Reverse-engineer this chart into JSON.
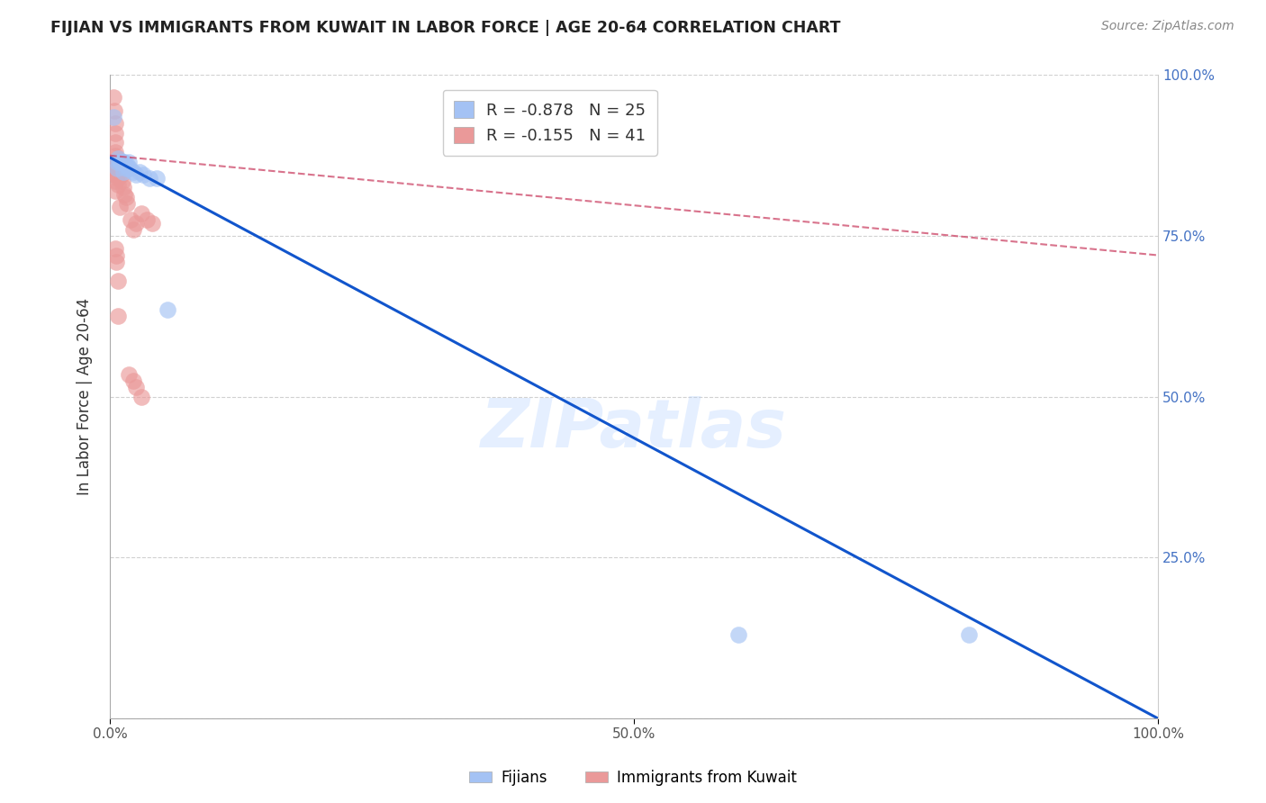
{
  "title": "FIJIAN VS IMMIGRANTS FROM KUWAIT IN LABOR FORCE | AGE 20-64 CORRELATION CHART",
  "source": "Source: ZipAtlas.com",
  "ylabel": "In Labor Force | Age 20-64",
  "xlim": [
    0.0,
    1.0
  ],
  "ylim": [
    0.0,
    1.0
  ],
  "legend_r_blue": "-0.878",
  "legend_n_blue": "25",
  "legend_r_pink": "-0.155",
  "legend_n_pink": "41",
  "blue_color": "#a4c2f4",
  "pink_color": "#ea9999",
  "blue_line_color": "#1155cc",
  "pink_line_color": "#cc4466",
  "watermark": "ZIPatlas",
  "fijian_points": [
    [
      0.003,
      0.935
    ],
    [
      0.007,
      0.865
    ],
    [
      0.007,
      0.855
    ],
    [
      0.008,
      0.87
    ],
    [
      0.009,
      0.865
    ],
    [
      0.01,
      0.865
    ],
    [
      0.011,
      0.865
    ],
    [
      0.012,
      0.865
    ],
    [
      0.013,
      0.865
    ],
    [
      0.013,
      0.85
    ],
    [
      0.014,
      0.865
    ],
    [
      0.015,
      0.855
    ],
    [
      0.016,
      0.86
    ],
    [
      0.017,
      0.855
    ],
    [
      0.018,
      0.865
    ],
    [
      0.019,
      0.855
    ],
    [
      0.022,
      0.85
    ],
    [
      0.025,
      0.845
    ],
    [
      0.028,
      0.85
    ],
    [
      0.032,
      0.845
    ],
    [
      0.038,
      0.84
    ],
    [
      0.045,
      0.84
    ],
    [
      0.055,
      0.635
    ],
    [
      0.6,
      0.13
    ],
    [
      0.82,
      0.13
    ]
  ],
  "kuwait_points": [
    [
      0.003,
      0.965
    ],
    [
      0.004,
      0.945
    ],
    [
      0.005,
      0.925
    ],
    [
      0.005,
      0.91
    ],
    [
      0.005,
      0.895
    ],
    [
      0.005,
      0.88
    ],
    [
      0.005,
      0.875
    ],
    [
      0.005,
      0.865
    ],
    [
      0.005,
      0.855
    ],
    [
      0.005,
      0.845
    ],
    [
      0.005,
      0.835
    ],
    [
      0.005,
      0.82
    ],
    [
      0.006,
      0.865
    ],
    [
      0.007,
      0.855
    ],
    [
      0.007,
      0.845
    ],
    [
      0.008,
      0.84
    ],
    [
      0.008,
      0.83
    ],
    [
      0.009,
      0.865
    ],
    [
      0.009,
      0.795
    ],
    [
      0.01,
      0.855
    ],
    [
      0.011,
      0.845
    ],
    [
      0.012,
      0.835
    ],
    [
      0.013,
      0.825
    ],
    [
      0.014,
      0.815
    ],
    [
      0.015,
      0.81
    ],
    [
      0.016,
      0.8
    ],
    [
      0.02,
      0.775
    ],
    [
      0.022,
      0.76
    ],
    [
      0.025,
      0.77
    ],
    [
      0.03,
      0.785
    ],
    [
      0.035,
      0.775
    ],
    [
      0.04,
      0.77
    ],
    [
      0.008,
      0.625
    ],
    [
      0.018,
      0.535
    ],
    [
      0.022,
      0.525
    ],
    [
      0.025,
      0.515
    ],
    [
      0.03,
      0.5
    ],
    [
      0.005,
      0.73
    ],
    [
      0.006,
      0.72
    ],
    [
      0.006,
      0.71
    ],
    [
      0.008,
      0.68
    ]
  ],
  "blue_trendline_x": [
    0.0,
    1.0
  ],
  "blue_trendline_y": [
    0.872,
    0.0
  ],
  "pink_trendline_x": [
    0.0,
    1.0
  ],
  "pink_trendline_y": [
    0.875,
    0.72
  ]
}
